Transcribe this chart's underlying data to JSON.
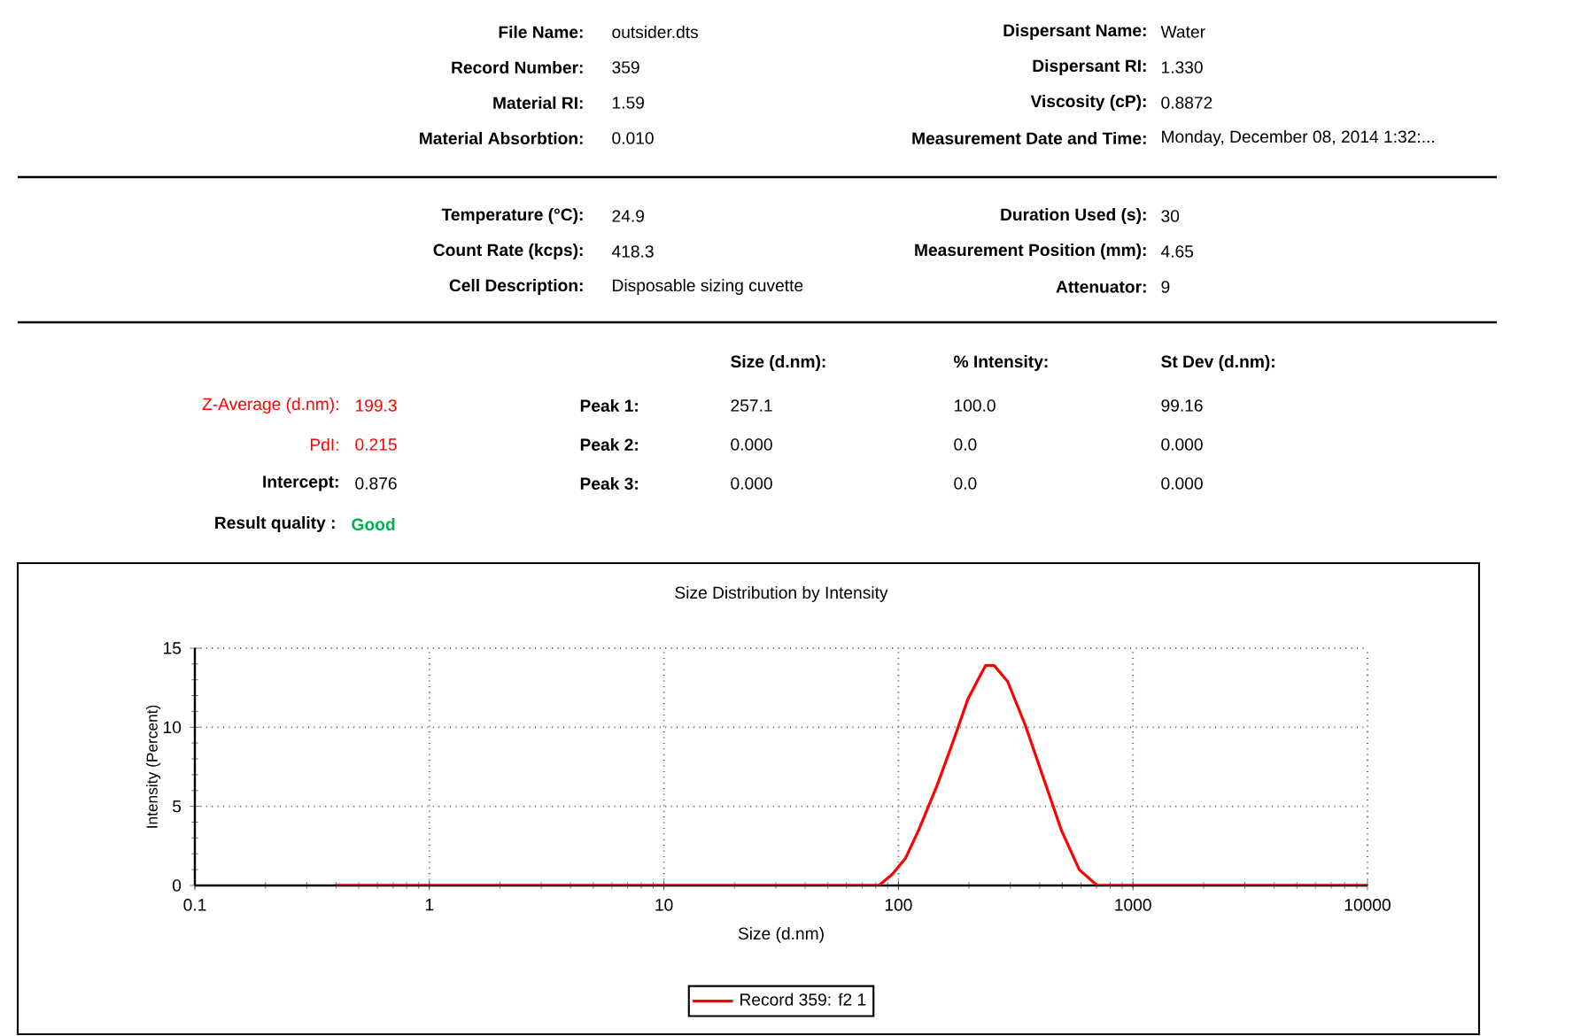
{
  "chart_data": {
    "type": "line",
    "title": "Size Distribution by Intensity",
    "xlabel": "Size (d.nm)",
    "ylabel": "Intensity (Percent)",
    "log": "x",
    "xlim": [
      0.1,
      10000
    ],
    "xticks": [
      0.1,
      1,
      10,
      100,
      1000,
      10000
    ],
    "ylim": [
      0,
      15
    ],
    "yticks": [
      0,
      5,
      10,
      15
    ],
    "grid": true,
    "legend": "bottom",
    "marker": "none",
    "line_style": "solid",
    "series": [
      {
        "name": "Record 359: f2 1",
        "color": "#ff0000",
        "x": [
          0.4,
          10,
          70,
          82.6,
          94,
          107,
          122,
          146,
          173,
          198,
          235,
          256,
          292,
          348,
          415,
          495,
          590,
          703,
          1000,
          10000
        ],
        "values": [
          0,
          0,
          0,
          0,
          0.7,
          1.7,
          3.5,
          6.3,
          9.3,
          11.8,
          13.9,
          13.9,
          12.9,
          10.1,
          6.8,
          3.5,
          1.0,
          0,
          0,
          0
        ]
      }
    ],
    "annotations": [
      "File Name:",
      "outsider.dts",
      "Dispersant Name:",
      "Water",
      "Record Number:",
      "359",
      "Dispersant RI:",
      "1.330",
      "Material RI:",
      "1.59",
      "Viscosity (cP):",
      "0.8872",
      "Material Absorbtion:",
      "0.010",
      "Measurement Date and Time:",
      "Monday, December 08, 2014 1:32:...",
      "Temperature (°C):",
      "24.9",
      "Duration Used (s):",
      "30",
      "Count Rate (kcps):",
      "418.3",
      "Measurement Position (mm):",
      "4.65",
      "Cell Description:",
      "Disposable sizing cuvette",
      "Attenuator:",
      "9",
      "Size (d.nm):",
      "% Intensity:",
      "St Dev (d.nm):",
      "Z-Average (d.nm):",
      "199.3",
      "Peak 1:",
      "257.1",
      "100.0",
      "99.16",
      "PdI:",
      "0.215",
      "Peak 2:",
      "0.000",
      "0.0",
      "0.000",
      "Intercept:",
      "0.876",
      "Peak 3:",
      "0.000",
      "0.0",
      "0.000",
      "Result quality :",
      "Good"
    ]
  }
}
